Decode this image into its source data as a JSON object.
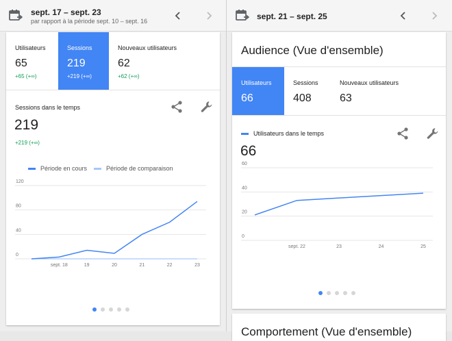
{
  "left": {
    "header": {
      "title": "sept. 17 – sept. 23",
      "subtitle": "par rapport à la période sept. 10 – sept. 16",
      "prev_icon": "chevron-left-icon",
      "next_icon": "chevron-right-icon"
    },
    "metrics": [
      {
        "label": "Utilisateurs",
        "value": "65",
        "delta": "+65 (+∞)"
      },
      {
        "label": "Sessions",
        "value": "219",
        "delta": "+219 (+∞)"
      },
      {
        "label": "Nouveaux utilisateurs",
        "value": "62",
        "delta": "+62 (+∞)"
      }
    ],
    "chart_card": {
      "title": "Sessions dans le temps",
      "value": "219",
      "delta": "+219 (+∞)",
      "legend_current": "Période en cours",
      "legend_compare": "Période de comparaison"
    },
    "page_dots": 5,
    "active_dot": 0
  },
  "right": {
    "header": {
      "title": "sept. 21 – sept. 25",
      "prev_icon": "chevron-left-icon",
      "next_icon": "chevron-right-icon"
    },
    "card_title": "Audience (Vue d'ensemble)",
    "metrics": [
      {
        "label": "Utilisateurs",
        "value": "66"
      },
      {
        "label": "Sessions",
        "value": "408"
      },
      {
        "label": "Nouveaux utilisateurs",
        "value": "63"
      }
    ],
    "chart_card": {
      "legend": "Utilisateurs dans le temps",
      "value": "66"
    },
    "page_dots": 5,
    "active_dot": 0,
    "next_card_title": "Comportement (Vue d'ensemble)"
  },
  "colors": {
    "accent": "#4285f4",
    "compare": "#a8c7fa",
    "positive": "#0f9d58"
  },
  "chart_data": [
    {
      "type": "line",
      "title": "Sessions dans le temps",
      "x": [
        "sept. 17",
        "sept. 18",
        "19",
        "20",
        "21",
        "22",
        "23"
      ],
      "xtick_labels": [
        "",
        "sept. 18",
        "19",
        "20",
        "21",
        "22",
        "23"
      ],
      "series": [
        {
          "name": "Période en cours",
          "values": [
            0,
            3,
            14,
            9,
            40,
            60,
            94
          ]
        },
        {
          "name": "Période de comparaison",
          "values": [
            0,
            0,
            0,
            0,
            0,
            0,
            0
          ]
        }
      ],
      "ylim": [
        0,
        120
      ],
      "yticks": [
        0,
        40,
        80,
        120
      ],
      "grid": true,
      "legend": "top"
    },
    {
      "type": "line",
      "x": [
        "sept. 21",
        "sept. 22",
        "23",
        "24",
        "25"
      ],
      "xtick_labels": [
        "",
        "sept. 22",
        "23",
        "24",
        "25"
      ],
      "series": [
        {
          "name": "Utilisateurs dans le temps",
          "values": [
            21,
            33,
            35,
            37,
            39
          ]
        }
      ],
      "ylim": [
        0,
        60
      ],
      "yticks": [
        0,
        20,
        40,
        60
      ],
      "grid": true,
      "legend": "top-left"
    }
  ]
}
